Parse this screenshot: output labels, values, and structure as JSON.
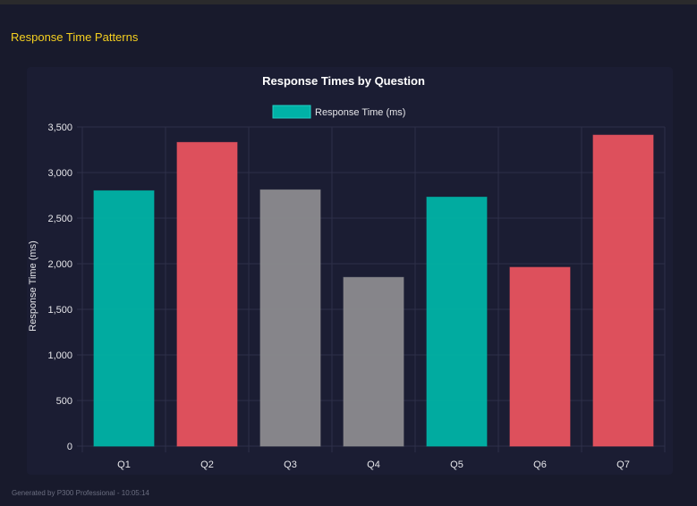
{
  "section_title": "Response Time Patterns",
  "footer": "Generated by P300 Professional - 10:05:14",
  "colors": {
    "teal": "#00b3a7",
    "red": "#e8535f",
    "gray": "#8c8b8f",
    "title": "#f5d020"
  },
  "chart_data": {
    "type": "bar",
    "title": "Response Times by Question",
    "legend": {
      "label": "Response Time (ms)",
      "placement": "top",
      "color": "#00b3a7"
    },
    "xlabel": "",
    "ylabel": "Response Time (ms)",
    "categories": [
      "Q1",
      "Q2",
      "Q3",
      "Q4",
      "Q5",
      "Q6",
      "Q7"
    ],
    "values": [
      2800,
      3330,
      2810,
      1850,
      2730,
      1960,
      3410
    ],
    "bar_colors": [
      "#00b3a7",
      "#e8535f",
      "#8c8b8f",
      "#8c8b8f",
      "#00b3a7",
      "#e8535f",
      "#e8535f"
    ],
    "ylim": [
      0,
      3500
    ],
    "yticks": [
      "0",
      "500",
      "1,000",
      "1,500",
      "2,000",
      "2,500",
      "3,000",
      "3,500"
    ],
    "grid": true
  }
}
